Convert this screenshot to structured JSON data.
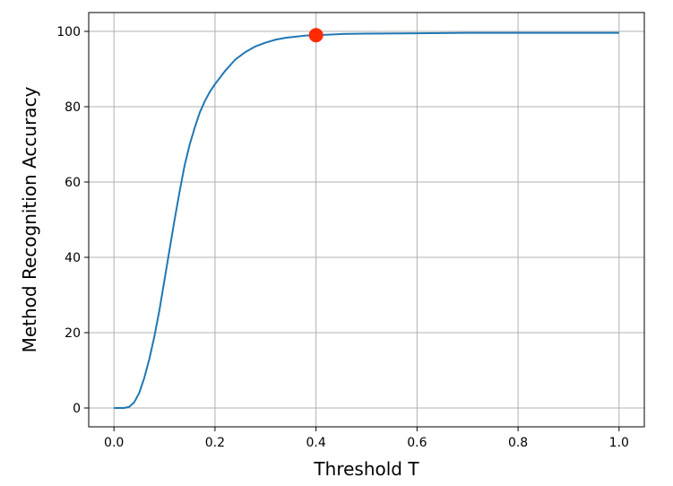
{
  "chart_data": {
    "type": "line",
    "xlabel": "Threshold T",
    "ylabel": "Method Recognition Accuracy",
    "xlim": [
      -0.05,
      1.05
    ],
    "ylim": [
      -5,
      105
    ],
    "xticks": [
      0.0,
      0.2,
      0.4,
      0.6,
      0.8,
      1.0
    ],
    "xtick_labels": [
      "0.0",
      "0.2",
      "0.4",
      "0.6",
      "0.8",
      "1.0"
    ],
    "yticks": [
      0,
      20,
      40,
      60,
      80,
      100
    ],
    "ytick_labels": [
      "0",
      "20",
      "40",
      "60",
      "80",
      "100"
    ],
    "grid": true,
    "series": [
      {
        "color": "#1f77b4",
        "x": [
          0.0,
          0.02,
          0.03,
          0.04,
          0.05,
          0.06,
          0.07,
          0.08,
          0.09,
          0.1,
          0.11,
          0.12,
          0.13,
          0.14,
          0.15,
          0.16,
          0.17,
          0.18,
          0.19,
          0.2,
          0.22,
          0.24,
          0.26,
          0.28,
          0.3,
          0.32,
          0.34,
          0.36,
          0.38,
          0.4,
          0.45,
          0.5,
          0.6,
          0.7,
          0.8,
          0.9,
          1.0
        ],
        "y": [
          0.0,
          0.0,
          0.3,
          1.5,
          4.0,
          8.0,
          13.0,
          19.0,
          26.0,
          34.0,
          42.0,
          50.0,
          57.5,
          64.5,
          70.0,
          74.5,
          78.5,
          81.5,
          84.0,
          86.0,
          89.5,
          92.5,
          94.5,
          96.0,
          97.0,
          97.8,
          98.3,
          98.6,
          98.9,
          99.0,
          99.3,
          99.4,
          99.5,
          99.6,
          99.6,
          99.6,
          99.6
        ]
      }
    ],
    "highlight_point": {
      "x": 0.4,
      "y": 99.0,
      "color": "#ff2a00"
    }
  }
}
